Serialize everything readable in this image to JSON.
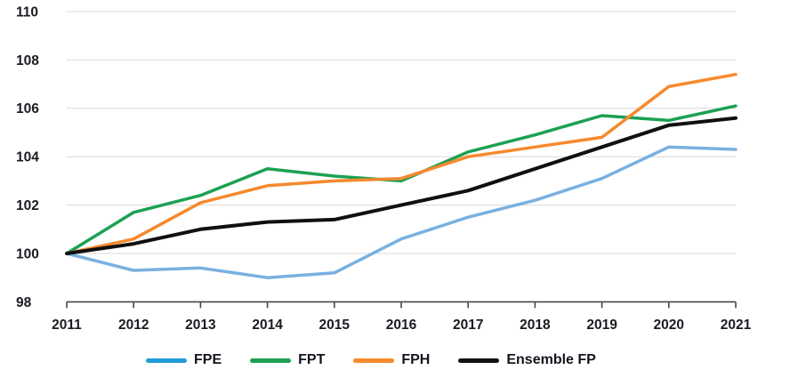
{
  "chart_data": {
    "type": "line",
    "title": "",
    "xlabel": "",
    "ylabel": "",
    "categories": [
      "2011",
      "2012",
      "2013",
      "2014",
      "2015",
      "2016",
      "2017",
      "2018",
      "2019",
      "2020",
      "2021"
    ],
    "series": [
      {
        "name": "FPE",
        "values": [
          100.0,
          99.3,
          99.4,
          99.0,
          99.2,
          100.6,
          101.5,
          102.2,
          103.1,
          104.4,
          104.3
        ],
        "line_color": "#79B0E1",
        "legend_color": "#209CD8"
      },
      {
        "name": "FPT",
        "values": [
          100.0,
          101.7,
          102.4,
          103.5,
          103.2,
          103.0,
          104.2,
          104.9,
          105.7,
          105.5,
          106.1
        ],
        "line_color": "#1CA152",
        "legend_color": "#1CA152"
      },
      {
        "name": "FPH",
        "values": [
          100.0,
          100.6,
          102.1,
          102.8,
          103.0,
          103.1,
          104.0,
          104.4,
          104.8,
          106.9,
          107.4
        ],
        "line_color": "#F6892D",
        "legend_color": "#F6892D"
      },
      {
        "name": "Ensemble FP",
        "values": [
          100.0,
          100.4,
          101.0,
          101.3,
          101.4,
          102.0,
          102.6,
          103.5,
          104.4,
          105.3,
          105.6
        ],
        "line_color": "#101010",
        "legend_color": "#101010"
      }
    ],
    "ylim": [
      98,
      110
    ],
    "y_ticks": [
      98,
      100,
      102,
      104,
      106,
      108,
      110
    ],
    "grid": "horizontal",
    "gridline_color": "#D9D9D9",
    "axis_line_color": "#474747",
    "tick_label_color": "#1b1b22",
    "legend_position": "bottom"
  }
}
